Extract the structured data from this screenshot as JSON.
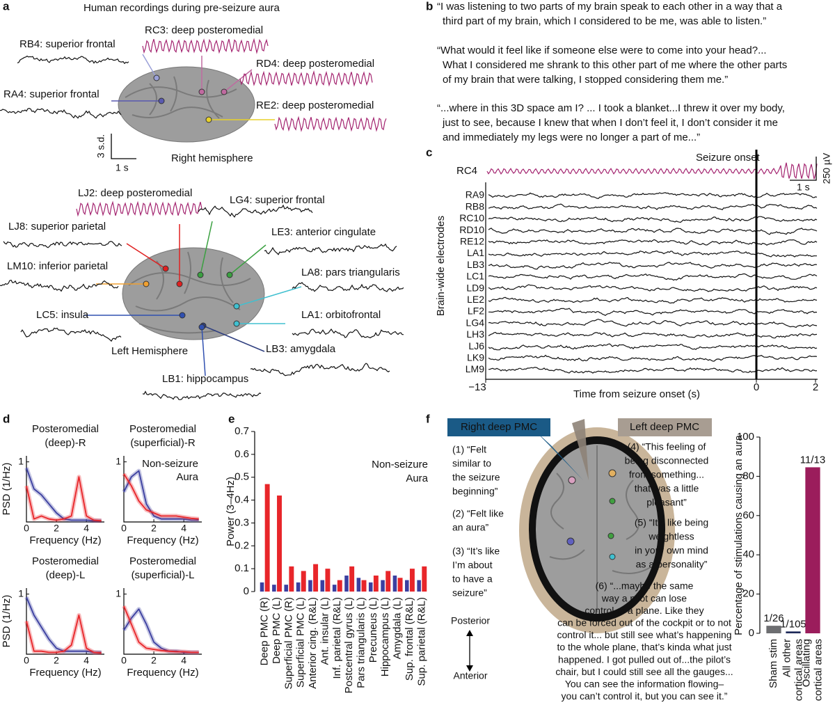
{
  "panel_labels": [
    "a",
    "b",
    "c",
    "d",
    "e",
    "f"
  ],
  "panel_a": {
    "title": "Human recordings during pre-seizure aura",
    "electrodes": [
      "RB4: superior frontal",
      "RC3: deep posteromedial",
      "RD4: deep posteromedial",
      "RA4: superior frontal",
      "RE2: deep posteromedial",
      "LJ2: deep posteromedial",
      "LG4: superior frontal",
      "LJ8: superior parietal",
      "LE3: anterior cingulate",
      "LM10: inferior parietal",
      "LA8: pars triangularis",
      "LC5: insula",
      "LA1: orbitofrontal",
      "LB3: amygdala",
      "LB1: hippocampus"
    ],
    "hemispheres": [
      "Right hemisphere",
      "Left Hemisphere"
    ],
    "scale_bar": [
      "3 s.d.",
      "1 s"
    ]
  },
  "panel_b": {
    "quotes": [
      [
        "“I was listening to two parts of my brain speak to each other in a way that a",
        "third part of my brain, which I considered to be me, was able to listen.”"
      ],
      [
        "“What would it feel like if someone else were to come into your head?...",
        "What I considered me shrank to this other part of me where the other parts",
        "of my brain that were talking, I stopped considering them me.”"
      ],
      [
        "“...where in this 3D space am I? ... I took a blanket...I threw it over my body,",
        "just to see, because I knew that when I don’t feel it, I don’t consider it me",
        "and immediately my legs were no longer a part of me...”"
      ]
    ]
  },
  "panel_c": {
    "onset_label": "Seizure onset",
    "highlight": "RC4",
    "electrodes": [
      "RA9",
      "RB8",
      "RC10",
      "RD10",
      "RE12",
      "LA1",
      "LB3",
      "LC1",
      "LD9",
      "LE2",
      "LF2",
      "LG4",
      "LH3",
      "LJ6",
      "LK9",
      "LM9"
    ],
    "scale_bar": [
      "1 s",
      "250 µV"
    ],
    "xtick_labels": [
      "−13",
      "0",
      "2"
    ],
    "xlabel": "Time from seizure onset (s)",
    "ylabel": "Brain-wide electrodes"
  },
  "panel_f": {
    "boxes": [
      "Right deep PMC",
      "Left deep PMC"
    ],
    "left_quotes": [
      [
        "(1) “Felt",
        "similar to",
        "the seizure",
        "beginning”"
      ],
      [
        "(2) “Felt like",
        "an aura”"
      ],
      [
        "(3) “It’s like",
        "I’m about",
        "to have a",
        "seizure”"
      ]
    ],
    "right_quotes": [
      [
        "(4) “This feeling of",
        "being disconnected",
        "from something...",
        "that was a little",
        "pleasant”"
      ],
      [
        "(5) “It’s like being",
        "weightless",
        "in your own mind",
        "as a personality”"
      ],
      [
        "(6) “...maybe the same",
        "way a pilot can lose",
        "control of a plane. Like they",
        "can be forced out of the cockpit or to not",
        "control it... but still see what’s happening",
        "to the whole plane, that’s kinda what just",
        "happened. I got pulled out of...the pilot’s",
        "chair, but I could still see all the gauges...",
        "You can see the information flowing–",
        "you can’t control it, but you can see it.”"
      ]
    ],
    "orientation": [
      "Posterior",
      "Anterior"
    ]
  },
  "chart_data": [
    {
      "type": "line",
      "title": [
        "Posteromedial",
        "(deep)-R"
      ],
      "xlabel": "Frequency (Hz)",
      "ylabel": "PSD (1/Hz)",
      "x": [
        0,
        0.5,
        1,
        1.5,
        2,
        2.5,
        3,
        3.5,
        4,
        4.5,
        5
      ],
      "xlim": [
        0,
        5.2
      ],
      "xticks": [
        0,
        2,
        4
      ],
      "ylim": [
        0,
        1.1
      ],
      "yticks": [
        1
      ],
      "series": [
        {
          "color": "#3b3fa0",
          "values": [
            0.9,
            0.55,
            0.45,
            0.3,
            0.15,
            0.05,
            0.03,
            0.03,
            0.03,
            0.02,
            0.02
          ]
        },
        {
          "color": "#e8262a",
          "values": [
            0.6,
            0.05,
            0.1,
            0.05,
            0.03,
            0.05,
            0.1,
            0.75,
            0.1,
            0.03,
            0.02
          ]
        }
      ]
    },
    {
      "type": "line",
      "title": [
        "Posteromedial",
        "(superficial)-R"
      ],
      "xlabel": "Frequency (Hz)",
      "x": [
        0,
        0.5,
        1,
        1.5,
        2,
        2.5,
        3,
        3.5,
        4,
        4.5,
        5
      ],
      "xlim": [
        0,
        5.2
      ],
      "xticks": [
        0,
        2,
        4
      ],
      "ylim": [
        0,
        1.1
      ],
      "yticks": [
        1
      ],
      "series": [
        {
          "name": "Non-seizure",
          "color": "#3b3fa0",
          "values": [
            0.5,
            0.75,
            0.85,
            0.3,
            0.1,
            0.05,
            0.05,
            0.05,
            0.05,
            0.03,
            0.03
          ]
        },
        {
          "name": "Aura",
          "color": "#e8262a",
          "values": [
            0.8,
            0.6,
            0.35,
            0.2,
            0.15,
            0.1,
            0.1,
            0.1,
            0.08,
            0.06,
            0.05
          ]
        }
      ]
    },
    {
      "type": "line",
      "title": [
        "Posteromedial",
        "(deep)-L"
      ],
      "xlabel": "Frequency (Hz)",
      "ylabel": "PSD (1/Hz)",
      "x": [
        0,
        0.5,
        1,
        1.5,
        2,
        2.5,
        3,
        3.5,
        4,
        4.5,
        5
      ],
      "xlim": [
        0,
        5.2
      ],
      "xticks": [
        0,
        2,
        4
      ],
      "ylim": [
        0,
        1.1
      ],
      "yticks": [
        1
      ],
      "series": [
        {
          "color": "#3b3fa0",
          "values": [
            0.95,
            0.65,
            0.45,
            0.25,
            0.1,
            0.05,
            0.05,
            0.05,
            0.05,
            0.03,
            0.03
          ]
        },
        {
          "color": "#e8262a",
          "values": [
            0.55,
            0.05,
            0.05,
            0.03,
            0.03,
            0.05,
            0.15,
            0.65,
            0.1,
            0.03,
            0.02
          ]
        }
      ]
    },
    {
      "type": "line",
      "title": [
        "Posteromedial",
        "(superficial)-L"
      ],
      "xlabel": "Frequency (Hz)",
      "x": [
        0,
        0.5,
        1,
        1.5,
        2,
        2.5,
        3,
        3.5,
        4,
        4.5,
        5
      ],
      "xlim": [
        0,
        5.2
      ],
      "xticks": [
        0,
        2,
        4
      ],
      "ylim": [
        0,
        1.1
      ],
      "yticks": [
        1
      ],
      "series": [
        {
          "color": "#3b3fa0",
          "values": [
            0.4,
            0.6,
            0.75,
            0.5,
            0.2,
            0.1,
            0.05,
            0.05,
            0.03,
            0.03,
            0.03
          ]
        },
        {
          "color": "#e8262a",
          "values": [
            0.8,
            0.5,
            0.2,
            0.1,
            0.08,
            0.06,
            0.05,
            0.04,
            0.04,
            0.03,
            0.03
          ]
        }
      ]
    },
    {
      "type": "bar",
      "ylabel": "Power (3–4Hz)",
      "categories": [
        "Deep PMC (R)",
        "Deep PMC (L)",
        "Superficial PMC (R)",
        "Superficial PMC (L)",
        "Anterior cing. (R&L)",
        "Ant. insular (L)",
        "Inf. parietal (R&L)",
        "Postcentral gyrus (L)",
        "Pars triangularis (L)",
        "Precuneus (L)",
        "Hippocampus (L)",
        "Amygdala (L)",
        "Sup. frontal (R&L)",
        "Sup. parietal (R&L)"
      ],
      "ylim": [
        0,
        0.7
      ],
      "yticks": [
        0,
        0.1,
        0.2,
        0.3,
        0.4,
        0.5,
        0.6,
        0.7
      ],
      "series": [
        {
          "name": "Non-seizure",
          "color": "#3b3fa0",
          "values": [
            0.04,
            0.03,
            0.03,
            0.04,
            0.05,
            0.05,
            0.03,
            0.07,
            0.06,
            0.04,
            0.05,
            0.07,
            0.05,
            0.05
          ]
        },
        {
          "name": "Aura",
          "color": "#e8262a",
          "values": [
            0.47,
            0.42,
            0.11,
            0.09,
            0.12,
            0.1,
            0.05,
            0.11,
            0.05,
            0.07,
            0.09,
            0.06,
            0.1,
            0.11
          ]
        }
      ]
    },
    {
      "type": "bar",
      "ylabel": "Percentage of stimulations causing an aura",
      "categories": [
        [
          "Sham stim"
        ],
        [
          "All other",
          "cortical areas"
        ],
        [
          "Oscillating",
          "cortical areas"
        ]
      ],
      "values": [
        3.85,
        0.95,
        84.6
      ],
      "value_labels": [
        "1/26",
        "1/105",
        "11/13"
      ],
      "colors": [
        "#6d6e71",
        "#1e2a5a",
        "#9b1d5c"
      ],
      "ylim": [
        0,
        100
      ],
      "yticks": [
        0,
        20,
        40,
        60,
        80,
        100
      ]
    }
  ]
}
